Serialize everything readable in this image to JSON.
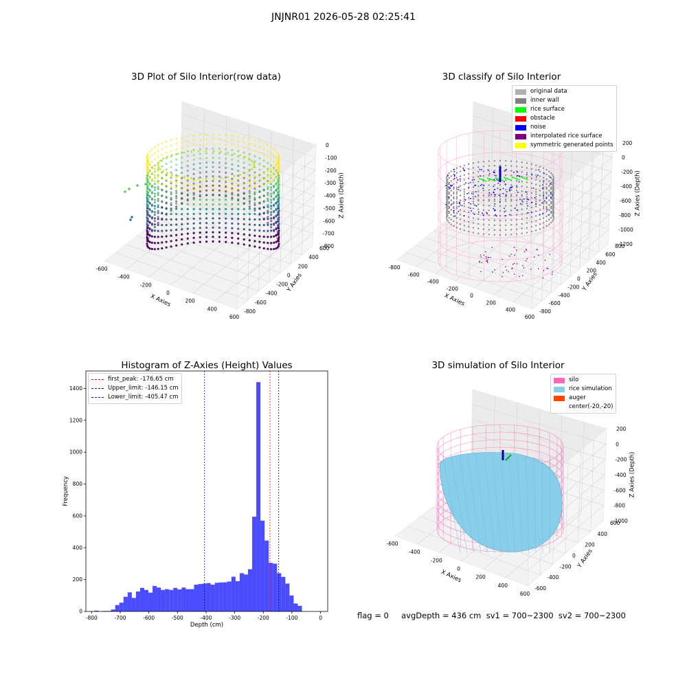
{
  "figure": {
    "suptitle": "JNJNR01 2026-05-28 02:25:41",
    "footer": "flag = 0     avgDepth = 436 cm  sv1 = 700~2300  sv2 = 700~2300"
  },
  "panels": {
    "raw": {
      "title": "3D Plot of Silo Interior(row data)",
      "xlabel": "X Axies",
      "ylabel": "Y Axies",
      "zlabel": "Z Axies (Depth)",
      "xticks": [
        "-600",
        "-400",
        "-200",
        "0",
        "200",
        "400",
        "600"
      ],
      "yticks": [
        "-800",
        "-600",
        "-400",
        "-200",
        "0",
        "200",
        "400",
        "600"
      ],
      "zticks": [
        "0",
        "-100",
        "-200",
        "-300",
        "-400",
        "-500",
        "-600",
        "-700",
        "-800"
      ]
    },
    "classify": {
      "title": "3D classify of Silo Interior",
      "xlabel": "X Axies",
      "ylabel": "Y Axies",
      "zlabel": "Z Axies (Depth)",
      "xticks": [
        "-800",
        "-600",
        "-400",
        "-200",
        "0",
        "200",
        "400",
        "600"
      ],
      "yticks": [
        "-800",
        "-600",
        "-400",
        "-200",
        "0",
        "200",
        "400",
        "600",
        "800"
      ],
      "zticks": [
        "200",
        "0",
        "-200",
        "-400",
        "-600",
        "-800",
        "-1000",
        "-1200"
      ],
      "legend": [
        {
          "label": "original data",
          "color": "#b0b0b0"
        },
        {
          "label": "inner wall",
          "color": "#808080"
        },
        {
          "label": "rice surface",
          "color": "#00ff00"
        },
        {
          "label": "obstacle",
          "color": "#ff0000"
        },
        {
          "label": "noise",
          "color": "#0000ff"
        },
        {
          "label": "interpolated rice surface",
          "color": "#800080"
        },
        {
          "label": "symmetric generated points",
          "color": "#ffff00"
        }
      ]
    },
    "simulation": {
      "title": "3D simulation of Silo Interior",
      "xlabel": "X Axies",
      "ylabel": "Y Axies",
      "zlabel": "Z Axies (Depth)",
      "xticks": [
        "-600",
        "-400",
        "-200",
        "0",
        "200",
        "400",
        "600"
      ],
      "yticks": [
        "-600",
        "-400",
        "-200",
        "0",
        "200",
        "400",
        "600"
      ],
      "zticks": [
        "200",
        "0",
        "-200",
        "-400",
        "-600",
        "-800",
        "-1000"
      ],
      "legend": [
        {
          "label": "silo",
          "color": "#ff69b4"
        },
        {
          "label": "rice simulation",
          "color": "#87ceeb"
        },
        {
          "label": "auger",
          "color": "#ff4500"
        },
        {
          "label": "center(-20,-20)",
          "color": ""
        }
      ]
    }
  },
  "chart_data": {
    "type": "bar",
    "title": "Histogram of Z-Axies (Height) Values",
    "xlabel": "Depth (cm)",
    "ylabel": "Frequency",
    "xlim": [
      -820,
      25
    ],
    "ylim": [
      0,
      1510
    ],
    "xticks": [
      -800,
      -700,
      -600,
      -500,
      -400,
      -300,
      -200,
      -100,
      0
    ],
    "yticks": [
      0,
      200,
      400,
      600,
      800,
      1000,
      1200,
      1400
    ],
    "bin_width": 14.5,
    "bin_start": -790,
    "values": [
      5,
      0,
      3,
      3,
      12,
      40,
      55,
      92,
      120,
      85,
      125,
      148,
      135,
      118,
      160,
      150,
      135,
      140,
      135,
      148,
      138,
      150,
      140,
      140,
      168,
      172,
      175,
      178,
      168,
      180,
      182,
      183,
      188,
      218,
      190,
      240,
      232,
      265,
      595,
      1440,
      570,
      445,
      305,
      300,
      240,
      217,
      175,
      100,
      50,
      35
    ],
    "color": "#0000ff",
    "vlines": [
      {
        "label": "first_peak: -176.65 cm",
        "x": -176.65,
        "color": "#ff0000"
      },
      {
        "label": "Upper_limit: -146.15 cm",
        "x": -146.15,
        "color": "#00008b"
      },
      {
        "label": "Lower_limit: -405.47 cm",
        "x": -405.47,
        "color": "#0000ff"
      }
    ]
  }
}
